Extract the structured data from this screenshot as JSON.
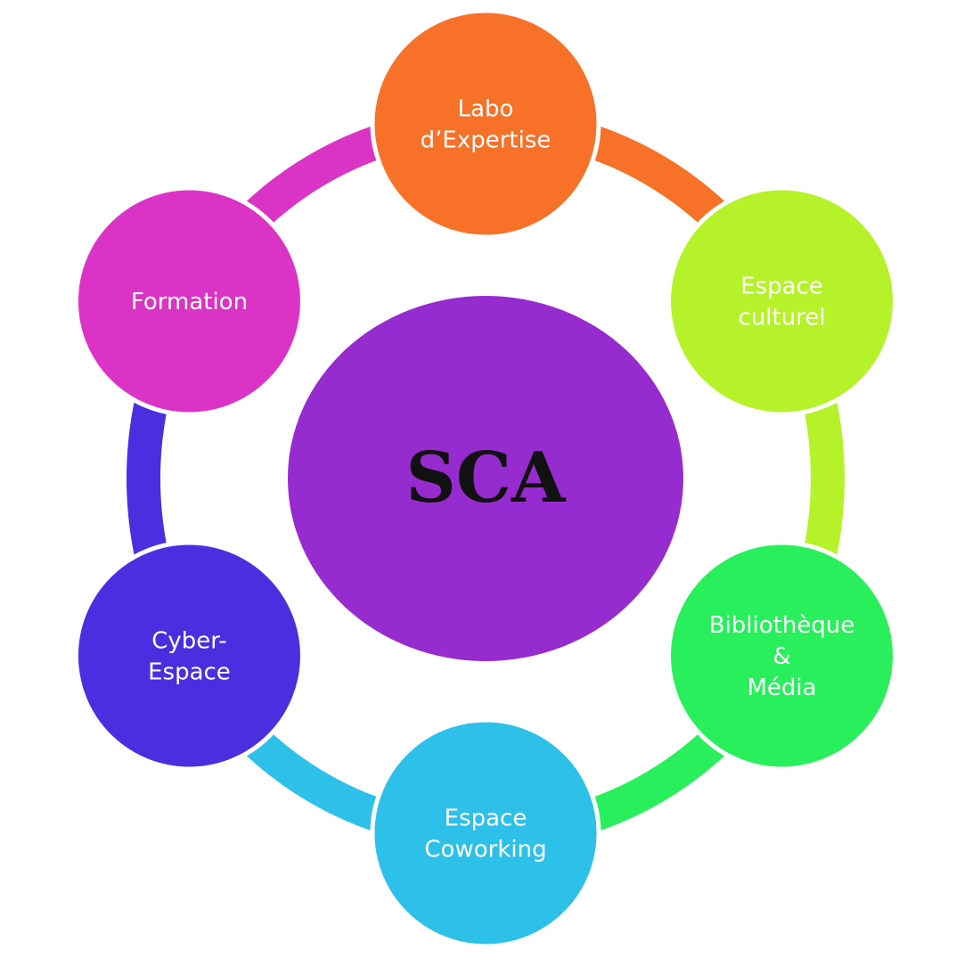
{
  "center": {
    "label": "SCA",
    "color": "#962BD0"
  },
  "nodes": [
    {
      "id": "labo-expertise",
      "lines": [
        "Labo",
        "d’Expertise"
      ],
      "color": "#F87128"
    },
    {
      "id": "espace-culturel",
      "lines": [
        "Espace",
        "culturel"
      ],
      "color": "#B6F229"
    },
    {
      "id": "bibliotheque-media",
      "lines": [
        "Bibliothèque",
        "&",
        "Média"
      ],
      "color": "#29EF5C"
    },
    {
      "id": "espace-coworking",
      "lines": [
        "Espace",
        "Coworking"
      ],
      "color": "#2DC0E8"
    },
    {
      "id": "cyber-espace",
      "lines": [
        "Cyber-",
        "Espace"
      ],
      "color": "#4A2EE0"
    },
    {
      "id": "formation",
      "lines": [
        "Formation"
      ],
      "color": "#DB33C6"
    }
  ]
}
